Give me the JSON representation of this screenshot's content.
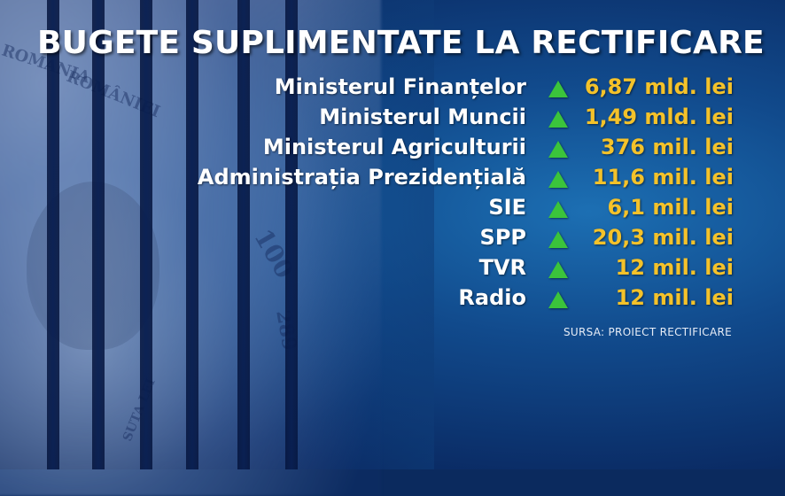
{
  "title": "BUGETE SUPLIMENTATE LA RECTIFICARE",
  "items": [
    {
      "label": "Ministerul Finanțelor",
      "value": "6,87 mld. lei",
      "trend": "up"
    },
    {
      "label": "Ministerul Muncii",
      "value": "1,49 mld. lei",
      "trend": "up"
    },
    {
      "label": "Ministerul Agriculturii",
      "value": "376 mil. lei",
      "trend": "up"
    },
    {
      "label": "Administrația Prezidențială",
      "value": "11,6 mil. lei",
      "trend": "up"
    },
    {
      "label": "SIE",
      "value": "6,1 mil. lei",
      "trend": "up"
    },
    {
      "label": "SPP",
      "value": "20,3 mil. lei",
      "trend": "up"
    },
    {
      "label": "TVR",
      "value": "12 mil. lei",
      "trend": "up"
    },
    {
      "label": "Radio",
      "value": "12 mil. lei",
      "trend": "up"
    }
  ],
  "source": "SURSA: PROIECT RECTIFICARE",
  "background_text": {
    "bank": "ROMÂNIEI",
    "country": "ROMANIA",
    "denomination_text": "SUTA LEI",
    "serial": "289",
    "number": "100"
  },
  "colors": {
    "title": "#ffffff",
    "label": "#ffffff",
    "value": "#f4c22a",
    "arrow": "#3bc43b",
    "background": "#0b2a5e"
  },
  "icons": {
    "trend_up": "green-up-triangle-icon"
  }
}
